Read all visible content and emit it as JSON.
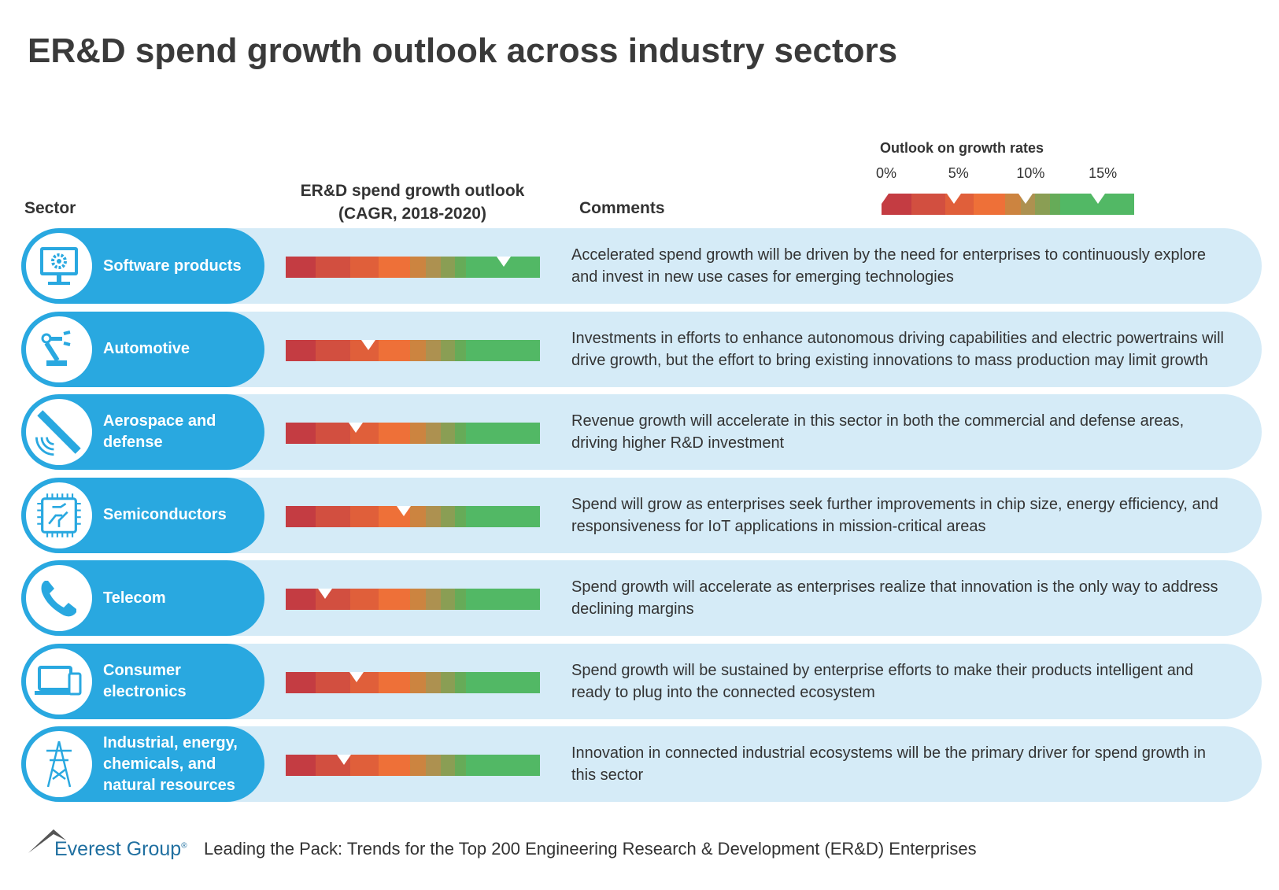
{
  "title": "ER&D spend growth outlook across industry sectors",
  "headers": {
    "sector": "Sector",
    "outlook_line1": "ER&D spend growth outlook",
    "outlook_line2": "(CAGR, 2018-2020)",
    "comments": "Comments"
  },
  "legend": {
    "title": "Outlook on growth rates",
    "ticks": [
      "0%",
      "5%",
      "10%",
      "15%"
    ]
  },
  "colors": {
    "pill": "#29a8e0",
    "row_bg": "#d5ebf7",
    "scale": [
      "#c43c42",
      "#d24f40",
      "#e05f3a",
      "#ee7038",
      "#cc8440",
      "#ad9150",
      "#8a9e54",
      "#66ab58",
      "#52b865"
    ]
  },
  "chart_data": {
    "type": "table",
    "scale_range_percent": [
      0,
      17.5
    ],
    "legend_markers_percent": [
      0,
      5,
      10,
      15
    ],
    "rows": [
      {
        "sector": "Software products",
        "icon": "monitor-gear-icon",
        "cagr_percent": 15,
        "comment": "Accelerated spend growth will be driven by the need for enterprises to continuously explore and invest in new use cases for emerging technologies"
      },
      {
        "sector": "Automotive",
        "icon": "robot-arm-icon",
        "cagr_percent": 5.7,
        "comment": "Investments in efforts to enhance autonomous driving capabilities and electric powertrains will drive growth, but the effort to bring existing innovations to mass production may limit growth"
      },
      {
        "sector": "Aerospace and defense",
        "icon": "satellite-icon",
        "cagr_percent": 4.8,
        "comment": "Revenue growth will accelerate in this sector in both the commercial and defense areas, driving higher R&D investment"
      },
      {
        "sector": "Semiconductors",
        "icon": "chip-icon",
        "cagr_percent": 8.1,
        "comment": "Spend will grow as enterprises seek further improvements in chip size, energy efficiency, and responsiveness for IoT applications in mission-critical areas"
      },
      {
        "sector": "Telecom",
        "icon": "phone-icon",
        "cagr_percent": 2.7,
        "comment": "Spend growth will accelerate as enterprises realize that innovation is the only way to address declining margins"
      },
      {
        "sector": "Consumer electronics",
        "icon": "laptop-phone-icon",
        "cagr_percent": 4.9,
        "comment": "Spend growth will be sustained by enterprise efforts to make their products intelligent and ready to plug into the connected ecosystem"
      },
      {
        "sector": "Industrial, energy, chemicals, and natural resources",
        "icon": "power-tower-icon",
        "cagr_percent": 4.0,
        "comment": "Innovation in connected industrial ecosystems will be the primary driver for spend growth in this sector"
      }
    ]
  },
  "footer": {
    "logo": "Everest Group®",
    "text": "Leading the Pack: Trends for the Top 200 Engineering Research & Development (ER&D) Enterprises"
  }
}
